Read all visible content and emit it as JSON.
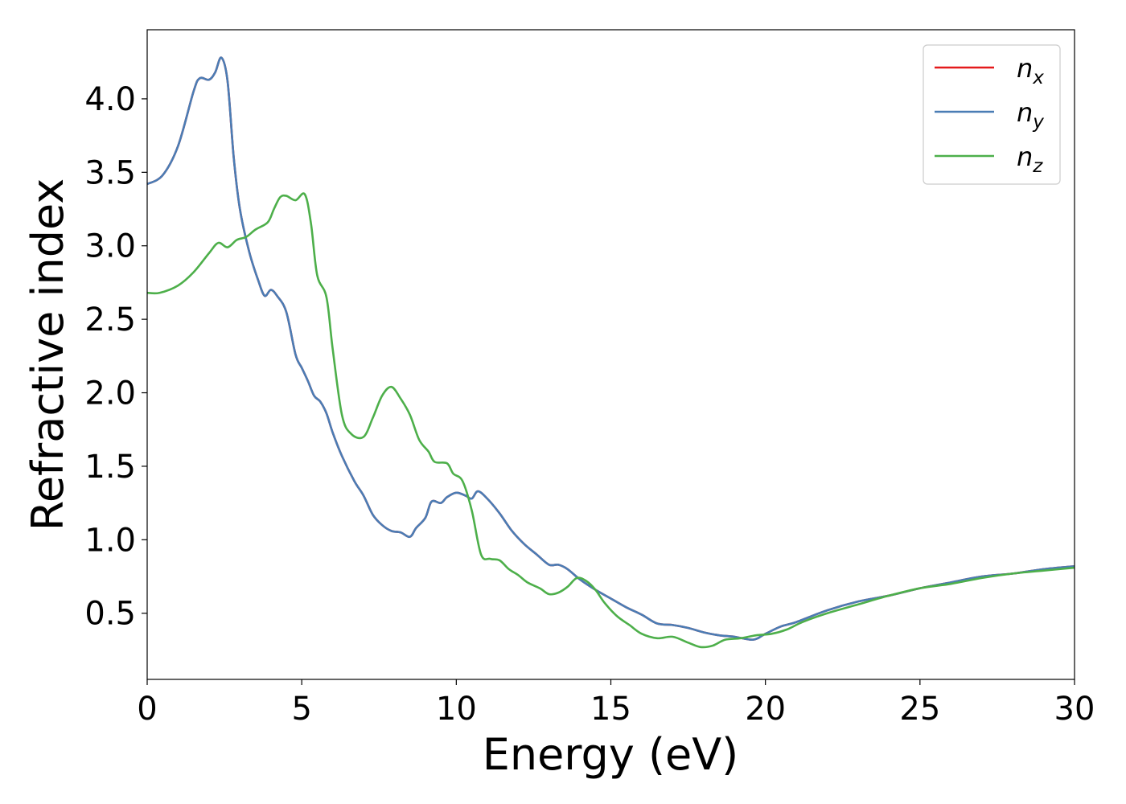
{
  "chart_data": {
    "type": "line",
    "title": "",
    "xlabel": "Energy (eV)",
    "ylabel": "Refractive index",
    "xlim": [
      0,
      30
    ],
    "ylim": [
      0.05,
      4.47
    ],
    "xticks": [
      0,
      5,
      10,
      15,
      20,
      25,
      30
    ],
    "xtick_labels": [
      "0",
      "5",
      "10",
      "15",
      "20",
      "25",
      "30"
    ],
    "yticks": [
      0.5,
      1.0,
      1.5,
      2.0,
      2.5,
      3.0,
      3.5,
      4.0
    ],
    "ytick_labels": [
      "0.5",
      "1.0",
      "1.5",
      "2.0",
      "2.5",
      "3.0",
      "3.5",
      "4.0"
    ],
    "grid": false,
    "legend_position": "top-right",
    "series": [
      {
        "name": "n",
        "subscript": "x",
        "color": "#e41a1c",
        "points": [
          [
            0,
            3.42
          ],
          [
            0.5,
            3.48
          ],
          [
            1.0,
            3.68
          ],
          [
            1.5,
            4.05
          ],
          [
            1.7,
            4.14
          ],
          [
            2.0,
            4.13
          ],
          [
            2.2,
            4.18
          ],
          [
            2.4,
            4.28
          ],
          [
            2.6,
            4.12
          ],
          [
            2.8,
            3.6
          ],
          [
            3.0,
            3.25
          ],
          [
            3.3,
            2.96
          ],
          [
            3.6,
            2.76
          ],
          [
            3.8,
            2.66
          ],
          [
            4.0,
            2.7
          ],
          [
            4.2,
            2.66
          ],
          [
            4.5,
            2.55
          ],
          [
            4.8,
            2.26
          ],
          [
            5.0,
            2.17
          ],
          [
            5.2,
            2.08
          ],
          [
            5.4,
            1.98
          ],
          [
            5.6,
            1.94
          ],
          [
            5.8,
            1.86
          ],
          [
            6.0,
            1.73
          ],
          [
            6.3,
            1.57
          ],
          [
            6.7,
            1.4
          ],
          [
            7.0,
            1.3
          ],
          [
            7.3,
            1.17
          ],
          [
            7.6,
            1.1
          ],
          [
            7.9,
            1.06
          ],
          [
            8.2,
            1.05
          ],
          [
            8.5,
            1.02
          ],
          [
            8.7,
            1.08
          ],
          [
            9.0,
            1.15
          ],
          [
            9.2,
            1.26
          ],
          [
            9.5,
            1.25
          ],
          [
            9.7,
            1.29
          ],
          [
            10.0,
            1.32
          ],
          [
            10.3,
            1.3
          ],
          [
            10.5,
            1.28
          ],
          [
            10.7,
            1.33
          ],
          [
            11.0,
            1.28
          ],
          [
            11.4,
            1.18
          ],
          [
            11.8,
            1.06
          ],
          [
            12.2,
            0.97
          ],
          [
            12.6,
            0.9
          ],
          [
            13.0,
            0.83
          ],
          [
            13.3,
            0.83
          ],
          [
            13.6,
            0.8
          ],
          [
            14.0,
            0.73
          ],
          [
            14.5,
            0.66
          ],
          [
            15.0,
            0.6
          ],
          [
            15.5,
            0.54
          ],
          [
            16.0,
            0.49
          ],
          [
            16.5,
            0.43
          ],
          [
            17.0,
            0.42
          ],
          [
            17.5,
            0.4
          ],
          [
            18.0,
            0.37
          ],
          [
            18.5,
            0.35
          ],
          [
            19.0,
            0.34
          ],
          [
            19.6,
            0.32
          ],
          [
            20.0,
            0.36
          ],
          [
            20.5,
            0.41
          ],
          [
            21.0,
            0.44
          ],
          [
            22.0,
            0.52
          ],
          [
            23.0,
            0.58
          ],
          [
            24.0,
            0.62
          ],
          [
            25.0,
            0.67
          ],
          [
            26.0,
            0.71
          ],
          [
            27.0,
            0.75
          ],
          [
            28.0,
            0.77
          ],
          [
            29.0,
            0.8
          ],
          [
            30.0,
            0.82
          ]
        ]
      },
      {
        "name": "n",
        "subscript": "y",
        "color": "#4a7db5",
        "points": [
          [
            0,
            3.42
          ],
          [
            0.5,
            3.48
          ],
          [
            1.0,
            3.68
          ],
          [
            1.5,
            4.05
          ],
          [
            1.7,
            4.14
          ],
          [
            2.0,
            4.13
          ],
          [
            2.2,
            4.18
          ],
          [
            2.4,
            4.28
          ],
          [
            2.6,
            4.12
          ],
          [
            2.8,
            3.6
          ],
          [
            3.0,
            3.25
          ],
          [
            3.3,
            2.96
          ],
          [
            3.6,
            2.76
          ],
          [
            3.8,
            2.66
          ],
          [
            4.0,
            2.7
          ],
          [
            4.2,
            2.66
          ],
          [
            4.5,
            2.55
          ],
          [
            4.8,
            2.26
          ],
          [
            5.0,
            2.17
          ],
          [
            5.2,
            2.08
          ],
          [
            5.4,
            1.98
          ],
          [
            5.6,
            1.94
          ],
          [
            5.8,
            1.86
          ],
          [
            6.0,
            1.73
          ],
          [
            6.3,
            1.57
          ],
          [
            6.7,
            1.4
          ],
          [
            7.0,
            1.3
          ],
          [
            7.3,
            1.17
          ],
          [
            7.6,
            1.1
          ],
          [
            7.9,
            1.06
          ],
          [
            8.2,
            1.05
          ],
          [
            8.5,
            1.02
          ],
          [
            8.7,
            1.08
          ],
          [
            9.0,
            1.15
          ],
          [
            9.2,
            1.26
          ],
          [
            9.5,
            1.25
          ],
          [
            9.7,
            1.29
          ],
          [
            10.0,
            1.32
          ],
          [
            10.3,
            1.3
          ],
          [
            10.5,
            1.28
          ],
          [
            10.7,
            1.33
          ],
          [
            11.0,
            1.28
          ],
          [
            11.4,
            1.18
          ],
          [
            11.8,
            1.06
          ],
          [
            12.2,
            0.97
          ],
          [
            12.6,
            0.9
          ],
          [
            13.0,
            0.83
          ],
          [
            13.3,
            0.83
          ],
          [
            13.6,
            0.8
          ],
          [
            14.0,
            0.73
          ],
          [
            14.5,
            0.66
          ],
          [
            15.0,
            0.6
          ],
          [
            15.5,
            0.54
          ],
          [
            16.0,
            0.49
          ],
          [
            16.5,
            0.43
          ],
          [
            17.0,
            0.42
          ],
          [
            17.5,
            0.4
          ],
          [
            18.0,
            0.37
          ],
          [
            18.5,
            0.35
          ],
          [
            19.0,
            0.34
          ],
          [
            19.6,
            0.32
          ],
          [
            20.0,
            0.36
          ],
          [
            20.5,
            0.41
          ],
          [
            21.0,
            0.44
          ],
          [
            22.0,
            0.52
          ],
          [
            23.0,
            0.58
          ],
          [
            24.0,
            0.62
          ],
          [
            25.0,
            0.67
          ],
          [
            26.0,
            0.71
          ],
          [
            27.0,
            0.75
          ],
          [
            28.0,
            0.77
          ],
          [
            29.0,
            0.8
          ],
          [
            30.0,
            0.82
          ]
        ]
      },
      {
        "name": "n",
        "subscript": "z",
        "color": "#4daf4a",
        "points": [
          [
            0,
            2.68
          ],
          [
            0.4,
            2.68
          ],
          [
            1.0,
            2.73
          ],
          [
            1.5,
            2.82
          ],
          [
            2.0,
            2.95
          ],
          [
            2.3,
            3.02
          ],
          [
            2.6,
            2.99
          ],
          [
            2.9,
            3.04
          ],
          [
            3.2,
            3.06
          ],
          [
            3.5,
            3.11
          ],
          [
            3.9,
            3.16
          ],
          [
            4.1,
            3.25
          ],
          [
            4.3,
            3.33
          ],
          [
            4.5,
            3.34
          ],
          [
            4.8,
            3.31
          ],
          [
            5.1,
            3.35
          ],
          [
            5.3,
            3.15
          ],
          [
            5.5,
            2.8
          ],
          [
            5.8,
            2.65
          ],
          [
            6.0,
            2.3
          ],
          [
            6.3,
            1.85
          ],
          [
            6.6,
            1.72
          ],
          [
            7.0,
            1.7
          ],
          [
            7.3,
            1.83
          ],
          [
            7.6,
            1.98
          ],
          [
            7.9,
            2.04
          ],
          [
            8.2,
            1.96
          ],
          [
            8.5,
            1.85
          ],
          [
            8.8,
            1.68
          ],
          [
            9.1,
            1.6
          ],
          [
            9.3,
            1.53
          ],
          [
            9.7,
            1.52
          ],
          [
            9.9,
            1.45
          ],
          [
            10.2,
            1.4
          ],
          [
            10.5,
            1.2
          ],
          [
            10.8,
            0.9
          ],
          [
            11.1,
            0.87
          ],
          [
            11.4,
            0.86
          ],
          [
            11.7,
            0.8
          ],
          [
            12.0,
            0.76
          ],
          [
            12.3,
            0.71
          ],
          [
            12.7,
            0.67
          ],
          [
            13.0,
            0.63
          ],
          [
            13.3,
            0.64
          ],
          [
            13.6,
            0.68
          ],
          [
            13.9,
            0.74
          ],
          [
            14.2,
            0.72
          ],
          [
            14.5,
            0.66
          ],
          [
            14.8,
            0.57
          ],
          [
            15.2,
            0.48
          ],
          [
            15.6,
            0.42
          ],
          [
            16.0,
            0.36
          ],
          [
            16.5,
            0.33
          ],
          [
            17.0,
            0.34
          ],
          [
            17.5,
            0.3
          ],
          [
            17.9,
            0.27
          ],
          [
            18.3,
            0.28
          ],
          [
            18.7,
            0.32
          ],
          [
            19.2,
            0.33
          ],
          [
            19.7,
            0.35
          ],
          [
            20.2,
            0.36
          ],
          [
            20.7,
            0.39
          ],
          [
            21.2,
            0.44
          ],
          [
            22.0,
            0.5
          ],
          [
            23.0,
            0.56
          ],
          [
            24.0,
            0.62
          ],
          [
            25.0,
            0.67
          ],
          [
            26.0,
            0.7
          ],
          [
            27.0,
            0.74
          ],
          [
            28.0,
            0.77
          ],
          [
            29.0,
            0.79
          ],
          [
            30.0,
            0.81
          ]
        ]
      }
    ]
  }
}
